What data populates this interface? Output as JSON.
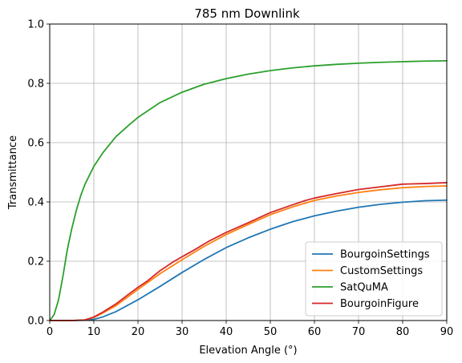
{
  "chart_data": {
    "type": "line",
    "title": "785 nm Downlink",
    "xlabel": "Elevation Angle (°)",
    "ylabel": "Transmittance",
    "xlim": [
      0,
      90
    ],
    "ylim": [
      0,
      1.0
    ],
    "xticks": [
      "0",
      "10",
      "20",
      "30",
      "40",
      "50",
      "60",
      "70",
      "80",
      "90"
    ],
    "yticks": [
      "0.0",
      "0.2",
      "0.4",
      "0.6",
      "0.8",
      "1.0"
    ],
    "grid": true,
    "legend_position": "lower-right",
    "series": [
      {
        "name": "BourgoinSettings",
        "color": "#1f77b4",
        "x": [
          0,
          5,
          8,
          10,
          12,
          15,
          20,
          25,
          30,
          35,
          40,
          45,
          50,
          55,
          60,
          65,
          70,
          75,
          80,
          85,
          90
        ],
        "y": [
          0,
          0,
          0.001,
          0.004,
          0.012,
          0.03,
          0.07,
          0.115,
          0.162,
          0.206,
          0.246,
          0.279,
          0.308,
          0.333,
          0.353,
          0.369,
          0.382,
          0.392,
          0.399,
          0.404,
          0.406
        ]
      },
      {
        "name": "CustomSettings",
        "color": "#ff7f0e",
        "x": [
          0,
          5,
          8,
          10,
          12,
          15,
          20,
          25,
          30,
          35,
          40,
          45,
          50,
          55,
          60,
          65,
          70,
          75,
          80,
          85,
          90
        ],
        "y": [
          0,
          0,
          0.002,
          0.01,
          0.025,
          0.05,
          0.105,
          0.158,
          0.205,
          0.25,
          0.29,
          0.324,
          0.357,
          0.383,
          0.405,
          0.42,
          0.432,
          0.441,
          0.448,
          0.452,
          0.454
        ]
      },
      {
        "name": "SatQuMA",
        "color": "#2ca02c",
        "x": [
          0,
          1,
          2,
          3,
          4,
          5,
          6,
          7,
          8,
          10,
          12,
          15,
          18,
          20,
          25,
          30,
          35,
          40,
          45,
          50,
          55,
          60,
          65,
          70,
          75,
          80,
          85,
          90
        ],
        "y": [
          0,
          0.02,
          0.07,
          0.15,
          0.24,
          0.31,
          0.37,
          0.42,
          0.46,
          0.52,
          0.565,
          0.62,
          0.66,
          0.685,
          0.735,
          0.77,
          0.797,
          0.816,
          0.831,
          0.843,
          0.852,
          0.859,
          0.864,
          0.868,
          0.871,
          0.873,
          0.875,
          0.876
        ]
      },
      {
        "name": "BourgoinFigure",
        "color": "#d62728",
        "x": [
          0,
          5,
          8,
          10,
          12,
          15,
          18,
          20,
          22,
          25,
          28,
          30,
          33,
          36,
          40,
          45,
          50,
          55,
          58,
          60,
          65,
          70,
          75,
          80,
          85,
          90
        ],
        "y": [
          0,
          0,
          0.002,
          0.012,
          0.028,
          0.056,
          0.09,
          0.112,
          0.132,
          0.168,
          0.198,
          0.215,
          0.24,
          0.267,
          0.297,
          0.33,
          0.364,
          0.39,
          0.405,
          0.413,
          0.428,
          0.442,
          0.451,
          0.46,
          0.462,
          0.465
        ]
      }
    ]
  }
}
